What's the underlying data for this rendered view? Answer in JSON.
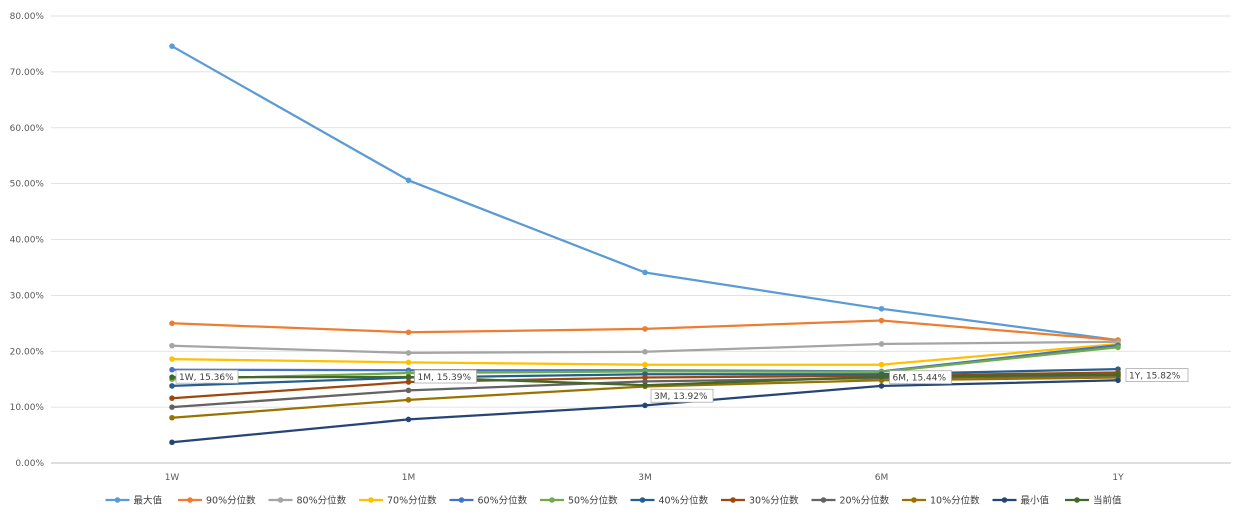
{
  "chart_data": {
    "type": "line",
    "categories": [
      "1W",
      "1M",
      "3M",
      "6M",
      "1Y"
    ],
    "ylim": [
      0,
      80
    ],
    "y_ticks": [
      0,
      10,
      20,
      30,
      40,
      50,
      60,
      70,
      80
    ],
    "y_tick_labels": [
      "0.00%",
      "10.00%",
      "20.00%",
      "30.00%",
      "40.00%",
      "50.00%",
      "60.00%",
      "70.00%",
      "80.00%"
    ],
    "grid": "horizontal",
    "legend_position": "bottom",
    "series": [
      {
        "name": "最大值",
        "color": "#5B9BD5",
        "values": [
          74.6,
          50.6,
          34.1,
          27.6,
          22.0
        ]
      },
      {
        "name": "90%分位数",
        "color": "#ED7D31",
        "values": [
          25.0,
          23.4,
          24.0,
          25.5,
          22.0
        ]
      },
      {
        "name": "80%分位数",
        "color": "#A5A5A5",
        "values": [
          21.0,
          19.7,
          19.9,
          21.3,
          21.7
        ]
      },
      {
        "name": "70%分位数",
        "color": "#FFC000",
        "values": [
          18.6,
          18.0,
          17.6,
          17.6,
          21.3
        ]
      },
      {
        "name": "60%分位数",
        "color": "#4472C4",
        "values": [
          16.7,
          16.6,
          16.6,
          16.4,
          21.1
        ]
      },
      {
        "name": "50%分位数",
        "color": "#70AD47",
        "values": [
          15.0,
          16.1,
          16.4,
          16.3,
          20.7
        ]
      },
      {
        "name": "40%分位数",
        "color": "#255E91",
        "values": [
          13.8,
          15.3,
          15.9,
          15.9,
          16.8
        ]
      },
      {
        "name": "30%分位数",
        "color": "#9E480E",
        "values": [
          11.6,
          14.5,
          15.3,
          15.6,
          16.2
        ]
      },
      {
        "name": "20%分位数",
        "color": "#636363",
        "values": [
          10.0,
          13.0,
          14.6,
          15.2,
          15.6
        ]
      },
      {
        "name": "10%分位数",
        "color": "#997300",
        "values": [
          8.1,
          11.3,
          13.7,
          14.8,
          15.3
        ]
      },
      {
        "name": "最小值",
        "color": "#264478",
        "values": [
          3.7,
          7.8,
          10.3,
          13.8,
          14.8
        ]
      },
      {
        "name": "当前值",
        "color": "#43682B",
        "values": [
          15.36,
          15.39,
          13.92,
          15.44,
          15.82
        ]
      }
    ],
    "annotations": [
      "1W, 15.36%",
      "1M, 15.39%",
      "3M, 13.92%",
      "6M, 15.44%",
      "1Y, 15.82%"
    ]
  }
}
